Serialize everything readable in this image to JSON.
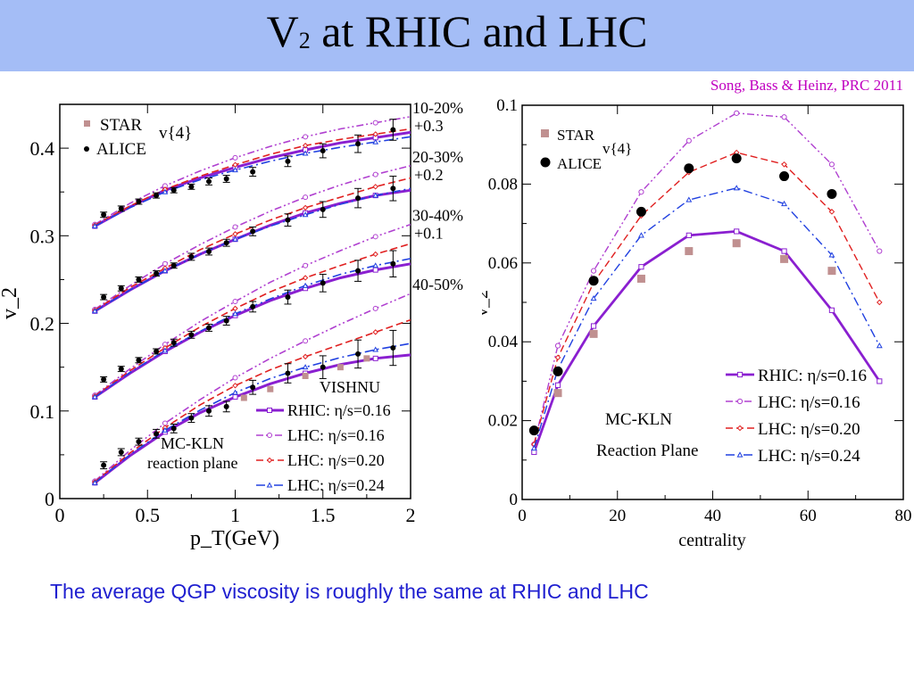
{
  "slide": {
    "title_main": "V",
    "title_sub": "2",
    "title_rest": " at RHIC and LHC",
    "citation": "Song,  Bass & Heinz, PRC 2011",
    "caption": "The average QGP viscosity is roughly the same at RHIC and LHC"
  },
  "colors": {
    "title_bar": "#a4bdf6",
    "rhic": "#8a1fd0",
    "lhc016": "#b040d0",
    "lhc020": "#e02020",
    "lhc024": "#2040e0",
    "star": "#c09090",
    "alice": "#000000",
    "caption": "#1f1fd0",
    "citation": "#c000c0"
  },
  "chart_data": [
    {
      "type": "line",
      "xlabel": "p_T(GeV)",
      "ylabel": "v_2",
      "xlim": [
        0,
        2
      ],
      "ylim": [
        0,
        0.45
      ],
      "x_ticks": [
        "0",
        "0.5",
        "1",
        "1.5",
        "2"
      ],
      "y_ticks": [
        "0",
        "0.1",
        "0.2",
        "0.3",
        "0.4"
      ],
      "legend_markers": [
        {
          "label": "STAR",
          "marker": "square"
        },
        {
          "label": "ALICE",
          "marker": "dot"
        }
      ],
      "legend_lines": [
        {
          "label": "RHIC: η/s=0.16",
          "style": "solid"
        },
        {
          "label": "LHC: η/s=0.16",
          "style": "dash-dot-dot"
        },
        {
          "label": "LHC: η/s=0.20",
          "style": "dashed"
        },
        {
          "label": "LHC: η/s=0.24",
          "style": "dash-dot"
        }
      ],
      "annotations": {
        "v24": "v{4}",
        "model": "VISHNU",
        "init1": "MC-KLN",
        "init2": "reaction plane"
      },
      "x": [
        0.2,
        0.4,
        0.6,
        0.8,
        1.0,
        1.2,
        1.4,
        1.6,
        1.8,
        2.0
      ],
      "groups": [
        {
          "label": "10-20%",
          "offset_label": "+0.3",
          "rhic": [
            0.311,
            0.333,
            0.352,
            0.366,
            0.378,
            0.389,
            0.398,
            0.406,
            0.412,
            0.418
          ],
          "lhc016": [
            0.313,
            0.337,
            0.357,
            0.374,
            0.389,
            0.402,
            0.413,
            0.422,
            0.429,
            0.436
          ],
          "lhc020": [
            0.312,
            0.334,
            0.353,
            0.368,
            0.381,
            0.393,
            0.403,
            0.41,
            0.416,
            0.422
          ],
          "lhc024": [
            0.311,
            0.332,
            0.35,
            0.364,
            0.375,
            0.385,
            0.394,
            0.401,
            0.407,
            0.413
          ],
          "alice_x": [
            0.25,
            0.35,
            0.45,
            0.55,
            0.65,
            0.75,
            0.85,
            0.95,
            1.1,
            1.3,
            1.5,
            1.7,
            1.9
          ],
          "alice_y": [
            0.324,
            0.331,
            0.339,
            0.346,
            0.352,
            0.356,
            0.362,
            0.365,
            0.373,
            0.385,
            0.397,
            0.405,
            0.421
          ],
          "alice_err": [
            0.003,
            0.003,
            0.003,
            0.003,
            0.003,
            0.003,
            0.004,
            0.004,
            0.005,
            0.006,
            0.008,
            0.01,
            0.012
          ]
        },
        {
          "label": "20-30%",
          "offset_label": "+0.2",
          "rhic": [
            0.214,
            0.238,
            0.26,
            0.279,
            0.296,
            0.312,
            0.326,
            0.337,
            0.346,
            0.352
          ],
          "lhc016": [
            0.216,
            0.243,
            0.268,
            0.29,
            0.31,
            0.328,
            0.344,
            0.358,
            0.37,
            0.38
          ],
          "lhc020": [
            0.215,
            0.241,
            0.263,
            0.284,
            0.302,
            0.318,
            0.332,
            0.344,
            0.356,
            0.366
          ],
          "lhc024": [
            0.214,
            0.238,
            0.26,
            0.279,
            0.296,
            0.311,
            0.324,
            0.336,
            0.346,
            0.354
          ],
          "alice_x": [
            0.25,
            0.35,
            0.45,
            0.55,
            0.65,
            0.75,
            0.85,
            0.95,
            1.1,
            1.3,
            1.5,
            1.7,
            1.9
          ],
          "alice_y": [
            0.23,
            0.24,
            0.25,
            0.257,
            0.266,
            0.276,
            0.282,
            0.292,
            0.305,
            0.318,
            0.33,
            0.343,
            0.354
          ],
          "alice_err": [
            0.003,
            0.003,
            0.003,
            0.003,
            0.003,
            0.004,
            0.004,
            0.004,
            0.005,
            0.007,
            0.009,
            0.011,
            0.014
          ]
        },
        {
          "label": "30-40%",
          "offset_label": "+0.1",
          "rhic": [
            0.116,
            0.143,
            0.168,
            0.19,
            0.209,
            0.226,
            0.24,
            0.252,
            0.261,
            0.268
          ],
          "lhc016": [
            0.118,
            0.148,
            0.176,
            0.202,
            0.225,
            0.247,
            0.266,
            0.283,
            0.299,
            0.313
          ],
          "lhc020": [
            0.117,
            0.146,
            0.172,
            0.196,
            0.217,
            0.236,
            0.252,
            0.266,
            0.279,
            0.291
          ],
          "lhc024": [
            0.116,
            0.144,
            0.169,
            0.191,
            0.211,
            0.228,
            0.243,
            0.256,
            0.266,
            0.274
          ],
          "alice_x": [
            0.25,
            0.35,
            0.45,
            0.55,
            0.65,
            0.75,
            0.85,
            0.95,
            1.1,
            1.3,
            1.5,
            1.7,
            1.9
          ],
          "alice_y": [
            0.136,
            0.148,
            0.158,
            0.168,
            0.178,
            0.187,
            0.195,
            0.203,
            0.219,
            0.23,
            0.246,
            0.26,
            0.268
          ],
          "alice_err": [
            0.003,
            0.003,
            0.003,
            0.003,
            0.004,
            0.004,
            0.004,
            0.005,
            0.006,
            0.008,
            0.01,
            0.012,
            0.015
          ]
        },
        {
          "label": "40-50%",
          "offset_label": "",
          "rhic": [
            0.018,
            0.049,
            0.076,
            0.098,
            0.116,
            0.131,
            0.143,
            0.153,
            0.16,
            0.164
          ],
          "lhc016": [
            0.02,
            0.055,
            0.086,
            0.113,
            0.138,
            0.16,
            0.18,
            0.199,
            0.217,
            0.234
          ],
          "lhc020": [
            0.019,
            0.052,
            0.081,
            0.107,
            0.129,
            0.147,
            0.162,
            0.176,
            0.19,
            0.204
          ],
          "lhc024": [
            0.018,
            0.05,
            0.078,
            0.101,
            0.121,
            0.137,
            0.15,
            0.161,
            0.17,
            0.177
          ],
          "star_x": [
            1.05,
            1.2,
            1.4,
            1.6,
            1.75
          ],
          "star_y": [
            0.115,
            0.125,
            0.14,
            0.15,
            0.16
          ],
          "alice_x": [
            0.25,
            0.35,
            0.45,
            0.55,
            0.65,
            0.75,
            0.85,
            0.95,
            1.1,
            1.3,
            1.5,
            1.7,
            1.9
          ],
          "alice_y": [
            0.038,
            0.053,
            0.065,
            0.074,
            0.08,
            0.092,
            0.1,
            0.105,
            0.127,
            0.143,
            0.15,
            0.165,
            0.172
          ],
          "alice_err": [
            0.004,
            0.004,
            0.004,
            0.005,
            0.005,
            0.005,
            0.006,
            0.006,
            0.008,
            0.011,
            0.013,
            0.016,
            0.02
          ]
        }
      ]
    },
    {
      "type": "line",
      "xlabel": "centrality",
      "ylabel": "v_2",
      "xlim": [
        0,
        80
      ],
      "ylim": [
        0,
        0.1
      ],
      "x_ticks": [
        "0",
        "20",
        "40",
        "60",
        "80"
      ],
      "y_ticks": [
        "0",
        "0.02",
        "0.04",
        "0.06",
        "0.08",
        "0.1"
      ],
      "y_tick_values": [
        0,
        0.02,
        0.04,
        0.06,
        0.08,
        0.1
      ],
      "legend_markers": [
        {
          "label": "STAR",
          "marker": "square"
        },
        {
          "label": "ALICE",
          "marker": "dot"
        }
      ],
      "legend_lines": [
        {
          "label": "RHIC: η/s=0.16",
          "style": "solid"
        },
        {
          "label": "LHC: η/s=0.16",
          "style": "dash-dot-dot"
        },
        {
          "label": "LHC: η/s=0.20",
          "style": "dashed"
        },
        {
          "label": "LHC: η/s=0.24",
          "style": "dash-dot"
        }
      ],
      "annotations": {
        "v24": "v{4}",
        "init1": "MC-KLN",
        "init2": "Reaction Plane"
      },
      "x": [
        2.5,
        7.5,
        15,
        25,
        35,
        45,
        55,
        65,
        75
      ],
      "rhic": [
        0.012,
        0.029,
        0.044,
        0.059,
        0.067,
        0.068,
        0.063,
        0.048,
        0.03
      ],
      "lhc016": [
        0.014,
        0.039,
        0.058,
        0.078,
        0.091,
        0.098,
        0.097,
        0.085,
        0.063
      ],
      "lhc020": [
        0.014,
        0.036,
        0.055,
        0.072,
        0.083,
        0.088,
        0.085,
        0.073,
        0.05
      ],
      "lhc024": [
        0.013,
        0.033,
        0.051,
        0.067,
        0.076,
        0.079,
        0.075,
        0.062,
        0.039
      ],
      "star_x": [
        7.5,
        15,
        25,
        35,
        45,
        55,
        65
      ],
      "star_y": [
        0.027,
        0.042,
        0.056,
        0.063,
        0.065,
        0.061,
        0.058
      ],
      "alice_x": [
        2.5,
        7.5,
        15,
        25,
        35,
        45,
        55,
        65
      ],
      "alice_y": [
        0.0175,
        0.0325,
        0.0555,
        0.073,
        0.084,
        0.0865,
        0.082,
        0.0775
      ]
    }
  ]
}
